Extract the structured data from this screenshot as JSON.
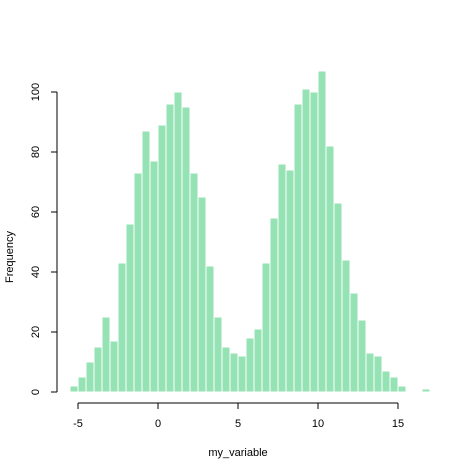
{
  "chart_data": {
    "type": "bar",
    "title": "",
    "xlabel": "my_variable",
    "ylabel": "Frequency",
    "bar_color": "#95E2B5",
    "bar_border_color": "#ffffff",
    "bin_width": 0.5,
    "xlim": [
      -5.5,
      17.0
    ],
    "ylim": [
      0,
      107
    ],
    "x_ticks": [
      -5,
      0,
      5,
      10,
      15
    ],
    "y_ticks": [
      0,
      20,
      40,
      60,
      80,
      100
    ],
    "x_tick_labels": [
      "-5",
      "0",
      "5",
      "10",
      "15"
    ],
    "y_tick_labels": [
      "0",
      "20",
      "40",
      "60",
      "80",
      "100"
    ],
    "bins": [
      {
        "start": -5.5,
        "count": 2
      },
      {
        "start": -5.0,
        "count": 5
      },
      {
        "start": -4.5,
        "count": 10
      },
      {
        "start": -4.0,
        "count": 15
      },
      {
        "start": -3.5,
        "count": 25
      },
      {
        "start": -3.0,
        "count": 17
      },
      {
        "start": -2.5,
        "count": 43
      },
      {
        "start": -2.0,
        "count": 56
      },
      {
        "start": -1.5,
        "count": 73
      },
      {
        "start": -1.0,
        "count": 87
      },
      {
        "start": -0.5,
        "count": 77
      },
      {
        "start": 0.0,
        "count": 89
      },
      {
        "start": 0.5,
        "count": 96
      },
      {
        "start": 1.0,
        "count": 100
      },
      {
        "start": 1.5,
        "count": 95
      },
      {
        "start": 2.0,
        "count": 73
      },
      {
        "start": 2.5,
        "count": 65
      },
      {
        "start": 3.0,
        "count": 42
      },
      {
        "start": 3.5,
        "count": 25
      },
      {
        "start": 4.0,
        "count": 15
      },
      {
        "start": 4.5,
        "count": 13
      },
      {
        "start": 5.0,
        "count": 12
      },
      {
        "start": 5.5,
        "count": 18
      },
      {
        "start": 6.0,
        "count": 21
      },
      {
        "start": 6.5,
        "count": 43
      },
      {
        "start": 7.0,
        "count": 58
      },
      {
        "start": 7.5,
        "count": 76
      },
      {
        "start": 8.0,
        "count": 74
      },
      {
        "start": 8.5,
        "count": 96
      },
      {
        "start": 9.0,
        "count": 101
      },
      {
        "start": 9.5,
        "count": 100
      },
      {
        "start": 10.0,
        "count": 107
      },
      {
        "start": 10.5,
        "count": 82
      },
      {
        "start": 11.0,
        "count": 63
      },
      {
        "start": 11.5,
        "count": 44
      },
      {
        "start": 12.0,
        "count": 33
      },
      {
        "start": 12.5,
        "count": 24
      },
      {
        "start": 13.0,
        "count": 13
      },
      {
        "start": 13.5,
        "count": 12
      },
      {
        "start": 14.0,
        "count": 7
      },
      {
        "start": 14.5,
        "count": 5
      },
      {
        "start": 15.0,
        "count": 2
      },
      {
        "start": 15.5,
        "count": 0
      },
      {
        "start": 16.0,
        "count": 0
      },
      {
        "start": 16.5,
        "count": 1
      }
    ]
  }
}
